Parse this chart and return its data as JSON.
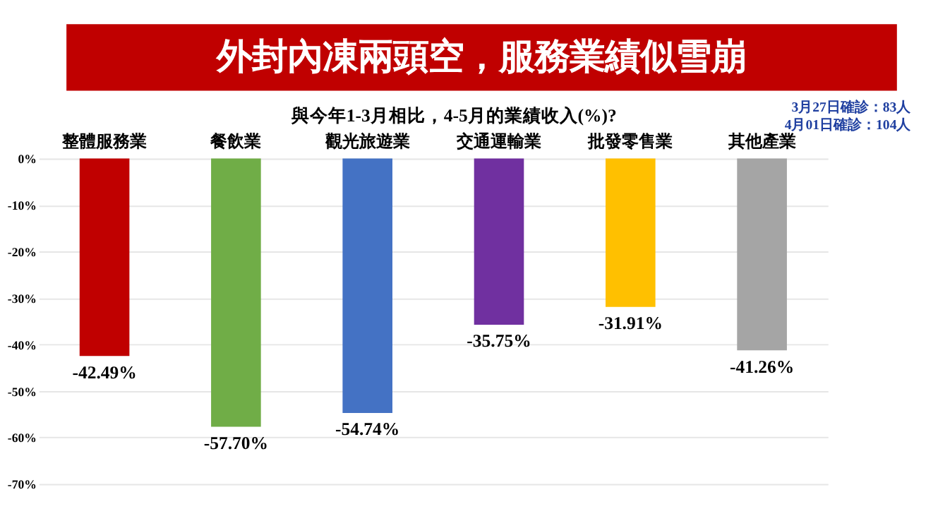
{
  "chart_data": {
    "type": "bar",
    "title": "外封內凍兩頭空，服務業績似雪崩",
    "subtitle": "與今年1-3月相比，4-5月的業績收入(%)?",
    "annotations": [
      "3月27日確診：83人",
      "4月01日確診：104人"
    ],
    "categories": [
      "整體服務業",
      "餐飲業",
      "觀光旅遊業",
      "交通運輸業",
      "批發零售業",
      "其他產業"
    ],
    "values": [
      -42.49,
      -57.7,
      -54.74,
      -35.75,
      -31.91,
      -41.26
    ],
    "colors": [
      "#c00000",
      "#70ad47",
      "#4472c4",
      "#7030a0",
      "#ffc000",
      "#a5a5a5"
    ],
    "value_labels": [
      "-42.49%",
      "-57.70%",
      "-54.74%",
      "-35.75%",
      "-31.91%",
      "-41.26%"
    ],
    "ylim": [
      -70,
      0
    ],
    "yticks": [
      {
        "value": 0,
        "label": "0%"
      },
      {
        "value": -10,
        "label": "-10%"
      },
      {
        "value": -20,
        "label": "-20%"
      },
      {
        "value": -30,
        "label": "-30%"
      },
      {
        "value": -40,
        "label": "-40%"
      },
      {
        "value": -50,
        "label": "-50%"
      },
      {
        "value": -60,
        "label": "-60%"
      },
      {
        "value": -70,
        "label": "-70%"
      }
    ],
    "grid": "y"
  }
}
